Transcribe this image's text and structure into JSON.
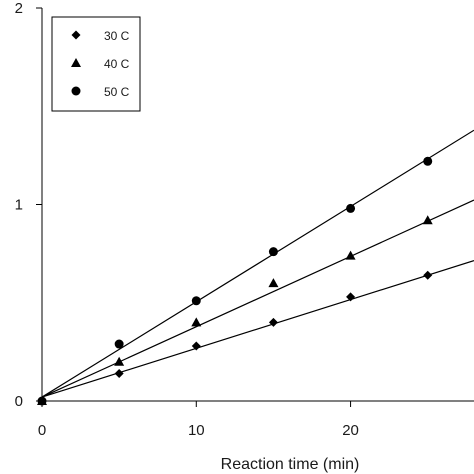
{
  "chart_data": {
    "type": "scatter",
    "title": "",
    "xlabel": "Reaction time (min)",
    "ylabel": "",
    "xlim": [
      0,
      28
    ],
    "ylim": [
      0,
      2
    ],
    "x_ticks": [
      "0",
      "10",
      "20"
    ],
    "y_ticks": [
      "0",
      "1",
      "2"
    ],
    "grid": false,
    "legend_position": "top-left",
    "series": [
      {
        "name": "30 C",
        "marker": "diamond",
        "x": [
          0,
          5,
          10,
          15,
          20,
          25
        ],
        "y": [
          0.0,
          0.14,
          0.28,
          0.4,
          0.53,
          0.64
        ],
        "fit": {
          "intercept": 0.02,
          "slope": 0.0248
        }
      },
      {
        "name": "40 C",
        "marker": "triangle",
        "x": [
          0,
          5,
          10,
          15,
          20,
          25
        ],
        "y": [
          0.0,
          0.2,
          0.4,
          0.6,
          0.74,
          0.92
        ],
        "fit": {
          "intercept": 0.02,
          "slope": 0.0358
        }
      },
      {
        "name": "50 C",
        "marker": "circle",
        "x": [
          0,
          5,
          10,
          15,
          20,
          25
        ],
        "y": [
          0.0,
          0.29,
          0.51,
          0.76,
          0.98,
          1.22
        ],
        "fit": {
          "intercept": 0.02,
          "slope": 0.0485
        }
      }
    ]
  }
}
